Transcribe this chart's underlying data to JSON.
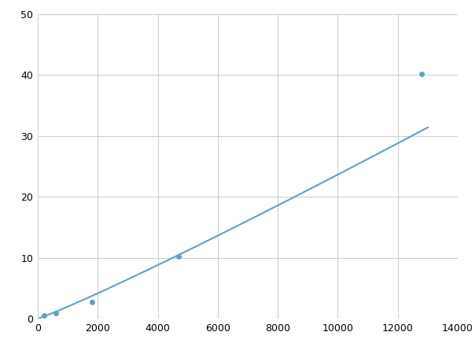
{
  "x_data": [
    200,
    600,
    1800,
    4700,
    12800
  ],
  "y_data": [
    0.5,
    0.85,
    2.7,
    10.2,
    40.2
  ],
  "line_color": "#5ba3c9",
  "marker_color": "#5ba3c9",
  "marker_size": 5,
  "line_width": 1.5,
  "xlim": [
    0,
    14000
  ],
  "ylim": [
    0,
    50
  ],
  "xticks": [
    0,
    2000,
    4000,
    6000,
    8000,
    10000,
    12000,
    14000
  ],
  "yticks": [
    0,
    10,
    20,
    30,
    40,
    50
  ],
  "xtick_labels": [
    "0",
    "2000",
    "4000",
    "6000",
    "8000",
    "10000",
    "12000",
    "14000"
  ],
  "ytick_labels": [
    "0",
    "10",
    "20",
    "30",
    "40",
    "50"
  ],
  "grid_color": "#d0d0d0",
  "background_color": "#ffffff",
  "tick_fontsize": 9,
  "power_a": 2.4e-05,
  "power_b": 1.72
}
